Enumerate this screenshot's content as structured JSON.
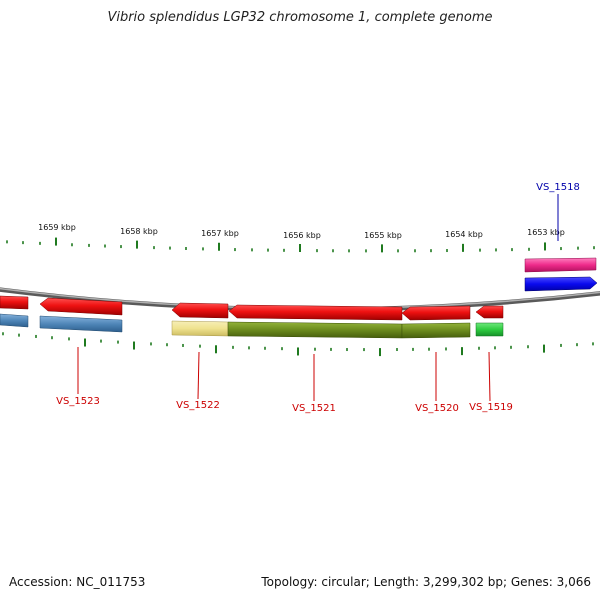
{
  "title": "Vibrio splendidus LGP32 chromosome 1, complete genome",
  "footer": {
    "accession": "Accession: NC_011753",
    "summary": "Topology: circular; Length: 3,299,302 bp; Genes: 3,066"
  },
  "kbp_ticks": [
    "1659 kbp",
    "1658 kbp",
    "1657 kbp",
    "1656 kbp",
    "1655 kbp",
    "1654 kbp",
    "1653 kbp"
  ],
  "genes": [
    {
      "label": "VS_1523",
      "color": "#cc0000"
    },
    {
      "label": "VS_1522",
      "color": "#cc0000"
    },
    {
      "label": "VS_1521",
      "color": "#cc0000"
    },
    {
      "label": "VS_1520",
      "color": "#cc0000"
    },
    {
      "label": "VS_1519",
      "color": "#cc0000"
    },
    {
      "label": "VS_1518",
      "color": "#0000aa"
    }
  ],
  "colors": {
    "backbone": "#8c8c8c",
    "tick": "#1f7a1f",
    "gene_reverse": "#ee1111",
    "gene_forward_pink": "#ee2a8a",
    "gene_forward_blue": "#0a0aee",
    "cds_steelblue": "#4f86b8",
    "cds_khaki": "#efe28f",
    "cds_olive": "#6b8a1d",
    "cds_green": "#2ecc40"
  }
}
